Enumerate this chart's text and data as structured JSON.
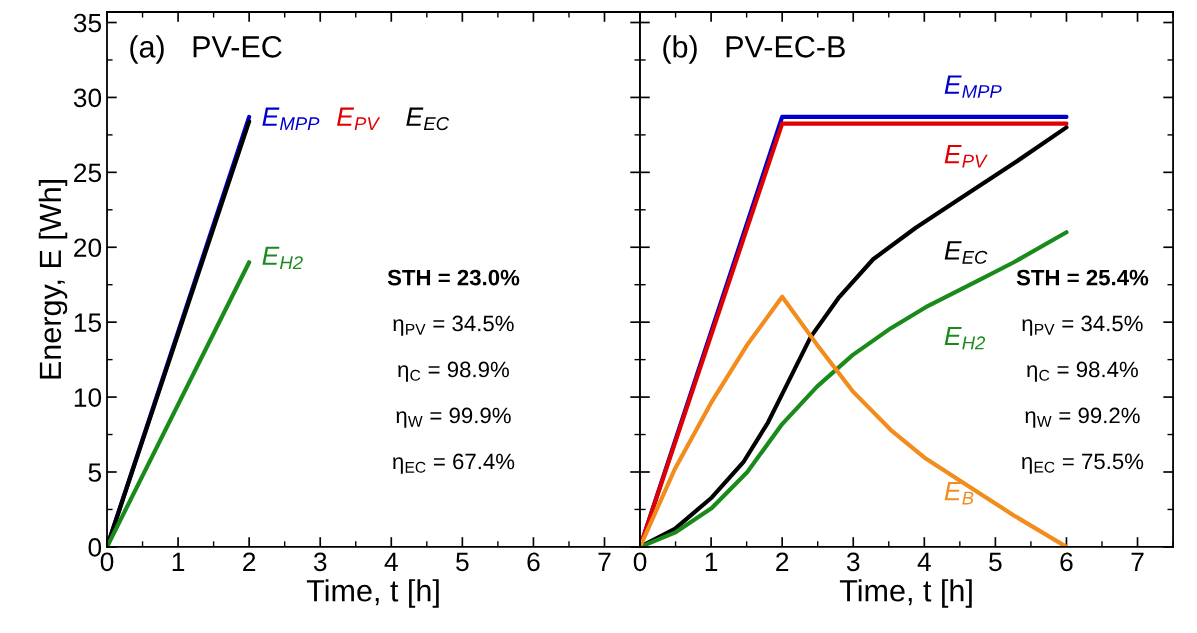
{
  "chart_data": [
    {
      "type": "line",
      "title": "(a)   PV-EC",
      "xlabel": "Time, t [h]",
      "ylabel": "Energy, E [Wh]",
      "xlim": [
        0,
        7.5
      ],
      "ylim": [
        0,
        35.7
      ],
      "xticks": [
        0,
        1,
        2,
        3,
        4,
        5,
        6,
        7
      ],
      "yticks": [
        0,
        5,
        10,
        15,
        20,
        25,
        30,
        35
      ],
      "grid": false,
      "legend": false,
      "line_style": "solid",
      "marker": "none",
      "annotations": [
        "STH = 23.0%",
        "η$_{PV}$ = 34.5%",
        "η$_{C}$ = 98.9%",
        "η$_{W}$ = 99.9%",
        "η$_{EC}$ = 67.4%"
      ],
      "series": [
        {
          "name": "E$_{MPP}$",
          "color": "#0000cc",
          "x": [
            0,
            2
          ],
          "values": [
            0,
            28.7
          ]
        },
        {
          "name": "E$_{PV}$",
          "color": "#e00000",
          "values": [
            null,
            null
          ]
        },
        {
          "name": "E$_{EC}$",
          "color": "#000000",
          "x": [
            0,
            2
          ],
          "values": [
            0,
            28.4
          ]
        },
        {
          "name": "E$_{H2}$",
          "color": "#1a8a1a",
          "x": [
            0,
            2
          ],
          "values": [
            0,
            19.0
          ]
        }
      ]
    },
    {
      "type": "line",
      "title": "(b)   PV-EC-B",
      "xlabel": "Time, t [h]",
      "xlim": [
        0,
        7.5
      ],
      "ylim": [
        0,
        35.7
      ],
      "xticks": [
        0,
        1,
        2,
        3,
        4,
        5,
        6,
        7
      ],
      "yticks": [
        0,
        5,
        10,
        15,
        20,
        25,
        30,
        35
      ],
      "tick_labels": "x",
      "grid": false,
      "legend": false,
      "line_style": "solid",
      "marker": "none",
      "annotations": [
        "STH = 25.4%",
        "η$_{PV}$ = 34.5%",
        "η$_{C}$ = 98.4%",
        "η$_{W}$ = 99.2%",
        "η$_{EC}$ = 75.5%"
      ],
      "series": [
        {
          "name": "E$_{MPP}$",
          "color": "#0000cc",
          "x": [
            0,
            2,
            6
          ],
          "values": [
            0,
            28.7,
            28.7
          ]
        },
        {
          "name": "E$_{PV}$",
          "color": "#e00000",
          "x": [
            0,
            2,
            6
          ],
          "values": [
            0,
            28.25,
            28.25
          ]
        },
        {
          "name": "E$_{EC}$",
          "color": "#000000",
          "x": [
            0,
            0.49,
            1.01,
            1.46,
            1.8,
            2.0,
            2.4,
            2.79,
            3.28,
            3.88,
            4.52,
            5.26,
            6
          ],
          "values": [
            0,
            1.2,
            3.3,
            5.7,
            8.3,
            10.2,
            14.0,
            16.6,
            19.2,
            21.3,
            23.3,
            25.6,
            28.0
          ]
        },
        {
          "name": "E$_{H2}$",
          "color": "#1a8a1a",
          "x": [
            0,
            0.49,
            1.01,
            1.51,
            2.0,
            2.49,
            2.99,
            3.53,
            4.02,
            4.77,
            5.26,
            6
          ],
          "values": [
            0,
            0.95,
            2.6,
            5.0,
            8.2,
            10.7,
            12.8,
            14.6,
            16.0,
            17.8,
            19.0,
            21.0
          ]
        },
        {
          "name": "E$_{B}$",
          "color": "#f28c1c",
          "x": [
            0,
            0.49,
            1.01,
            1.51,
            2,
            2.49,
            2.99,
            3.53,
            4.02,
            4.77,
            5.26,
            6
          ],
          "values": [
            0,
            5.2,
            9.7,
            13.5,
            16.7,
            13.5,
            10.4,
            7.8,
            5.9,
            3.6,
            2.1,
            0
          ]
        }
      ]
    }
  ]
}
